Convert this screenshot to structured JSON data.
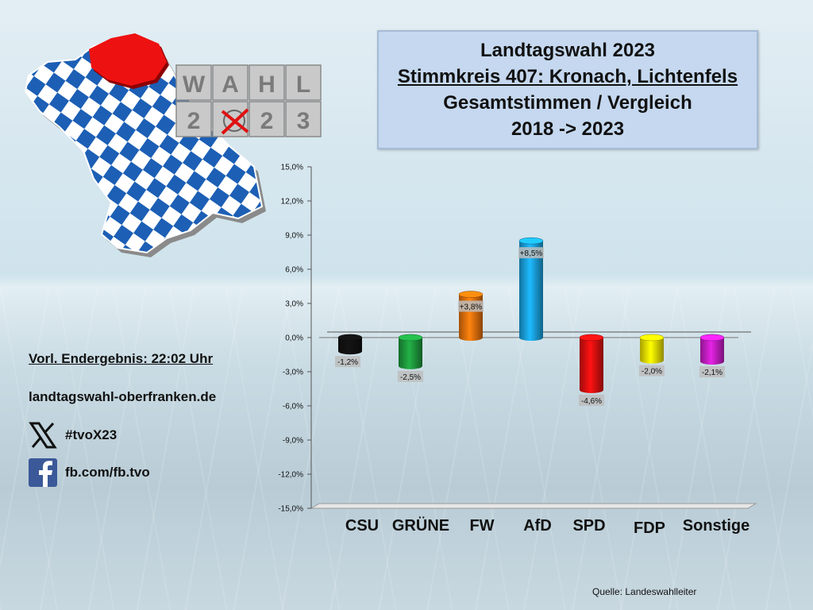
{
  "title": {
    "line1": "Landtagswahl 2023",
    "line2": "Stimmkreis 407: Kronach, Lichtenfels",
    "line3": "Gesamtstimmen / Vergleich",
    "line4": "2018 -> 2023"
  },
  "logo": {
    "letters_top": [
      "W",
      "A",
      "H",
      "L"
    ],
    "letters_bottom": [
      "2",
      "0",
      "2",
      "3"
    ]
  },
  "info": {
    "result_label": "Vorl. Endergebnis: 22:02 Uhr",
    "website": "landtagswahl-oberfranken.de",
    "x_handle": "#tvoX23",
    "fb_handle": "fb.com/fb.tvo"
  },
  "icons": {
    "x": "x-logo-icon",
    "facebook": "facebook-icon",
    "map": "bavaria-map-icon"
  },
  "source": "Quelle:  Landeswahlleiter",
  "chart_data": {
    "type": "bar",
    "categories": [
      "CSU",
      "GRÜNE",
      "FW",
      "AfD",
      "SPD",
      "FDP",
      "Sonstige"
    ],
    "values": [
      -1.2,
      -2.5,
      3.8,
      8.5,
      -4.6,
      -2.0,
      -2.1
    ],
    "data_labels": [
      "-1,2%",
      "-2,5%",
      "+3,8%",
      "+8,5%",
      "-4,6%",
      "-2,0%",
      "-2,1%"
    ],
    "colors": [
      "#111111",
      "#1e9b3e",
      "#e8720c",
      "#1aa3e0",
      "#e01010",
      "#f2e600",
      "#c81ec8"
    ],
    "ylim": [
      -15,
      15
    ],
    "yticks": [
      15,
      12,
      9,
      6,
      3,
      0,
      -3,
      -6,
      -9,
      -12,
      -15
    ],
    "ytick_labels": [
      "15,0%",
      "12,0%",
      "9,0%",
      "6,0%",
      "3,0%",
      "0,0%",
      "-3,0%",
      "-6,0%",
      "-9,0%",
      "-12,0%",
      "-15,0%"
    ],
    "grid": false,
    "legend": "none"
  }
}
